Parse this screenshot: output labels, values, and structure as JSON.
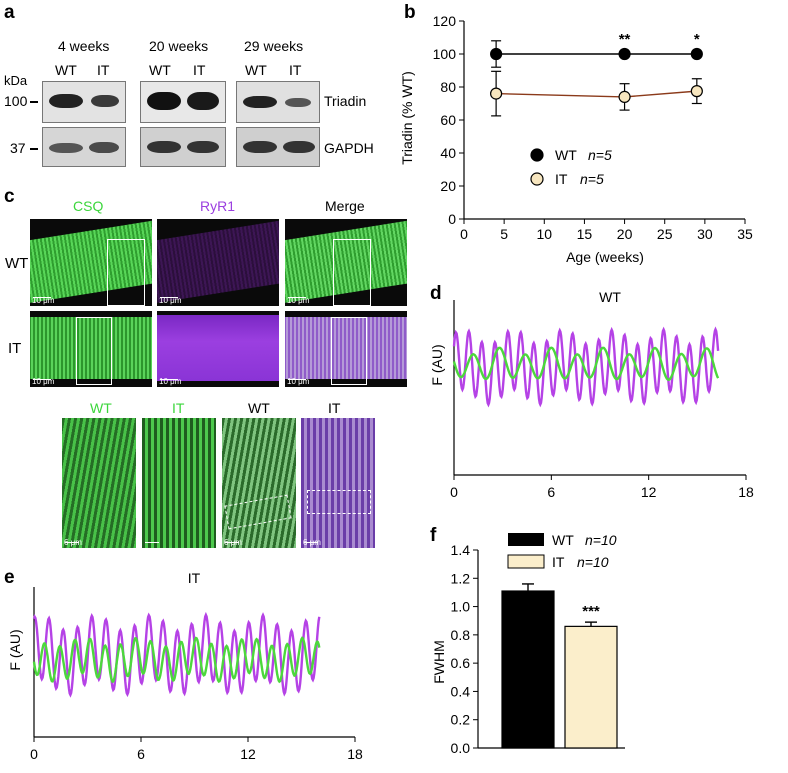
{
  "panel_a": {
    "letter": "a",
    "groups": [
      "4 weeks",
      "20 weeks",
      "29 weeks"
    ],
    "lane_labels": [
      "WT",
      "IT"
    ],
    "kda_label": "kDa",
    "markers": [
      "100",
      "37"
    ],
    "proteins": [
      "Triadin",
      "GAPDH"
    ]
  },
  "panel_c": {
    "letter": "c",
    "columns": [
      "CSQ",
      "RyR1",
      "Merge"
    ],
    "rows": [
      "WT",
      "IT"
    ],
    "zoom_labels": [
      "WT",
      "IT",
      "WT",
      "IT"
    ],
    "scale_10": "10 μm",
    "scale_6": "6 μm",
    "colors": {
      "csq": "#3bd63b",
      "ryr1": "#9b3fe0"
    }
  },
  "chart_data": [
    {
      "panel": "b",
      "type": "line",
      "xlabel": "Age (weeks)",
      "ylabel": "Triadin (% WT)",
      "xlim": [
        0,
        35
      ],
      "ylim": [
        0,
        120
      ],
      "xticks": [
        "0",
        "5",
        "10",
        "15",
        "20",
        "25",
        "30",
        "35"
      ],
      "yticks": [
        "0",
        "20",
        "40",
        "60",
        "80",
        "100",
        "120"
      ],
      "x": [
        4,
        20,
        29
      ],
      "series": [
        {
          "name": "WT",
          "legend_n": "n=5",
          "values": [
            100,
            100,
            100
          ],
          "errors": [
            8,
            0,
            0
          ],
          "color": "#000000",
          "fill": "#000000"
        },
        {
          "name": "IT",
          "legend_n": "n=5",
          "values": [
            76,
            74,
            77.5
          ],
          "errors": [
            13.5,
            8,
            7.5
          ],
          "color": "#8b3a1a",
          "fill": "#f7e6bf"
        }
      ],
      "annotations": [
        {
          "x": 20,
          "text": "**"
        },
        {
          "x": 29,
          "text": "*"
        }
      ],
      "legend": "center"
    },
    {
      "panel": "d",
      "type": "line",
      "title": "WT",
      "ylabel": "F (AU)",
      "xlim": [
        0,
        18
      ],
      "xticks": [
        "0",
        "6",
        "12",
        "18"
      ],
      "series": [
        {
          "name": "RyR1",
          "color": "#b542e6",
          "period": 0.8,
          "phase": 0.1,
          "amp": 1.0,
          "offset": 0.0
        },
        {
          "name": "CSQ",
          "color": "#4cd83c",
          "period": 1.6,
          "phase": 0.5,
          "amp": 0.45,
          "offset": 0.08
        }
      ],
      "x_end": 16.3
    },
    {
      "panel": "e",
      "type": "line",
      "title": "IT",
      "ylabel": "F (AU)",
      "xlim": [
        0,
        18
      ],
      "xticks": [
        "0",
        "6",
        "12",
        "18"
      ],
      "series": [
        {
          "name": "RyR1",
          "color": "#b542e6",
          "period": 0.8,
          "phase": 0.2,
          "amp": 1.0,
          "offset": 0.0
        },
        {
          "name": "CSQ",
          "color": "#4cd83c",
          "period": 0.85,
          "phase": 0.55,
          "amp": 0.55,
          "offset": -0.15
        }
      ],
      "x_end": 16.0
    },
    {
      "panel": "f",
      "type": "bar",
      "ylabel": "FWHM",
      "ylim": [
        0,
        1.4
      ],
      "yticks": [
        "0.0",
        "0.2",
        "0.4",
        "0.6",
        "0.8",
        "1.0",
        "1.2",
        "1.4"
      ],
      "categories": [
        "WT",
        "IT"
      ],
      "values": [
        1.11,
        0.86
      ],
      "errors": [
        0.05,
        0.03
      ],
      "colors": [
        "#000000",
        "#fbeecb"
      ],
      "legend_n": [
        "n=10",
        "n=10"
      ],
      "annotations": [
        {
          "category": "IT",
          "text": "***"
        }
      ],
      "legend": "top"
    }
  ],
  "letters": {
    "b": "b",
    "d": "d",
    "e": "e",
    "f": "f"
  }
}
